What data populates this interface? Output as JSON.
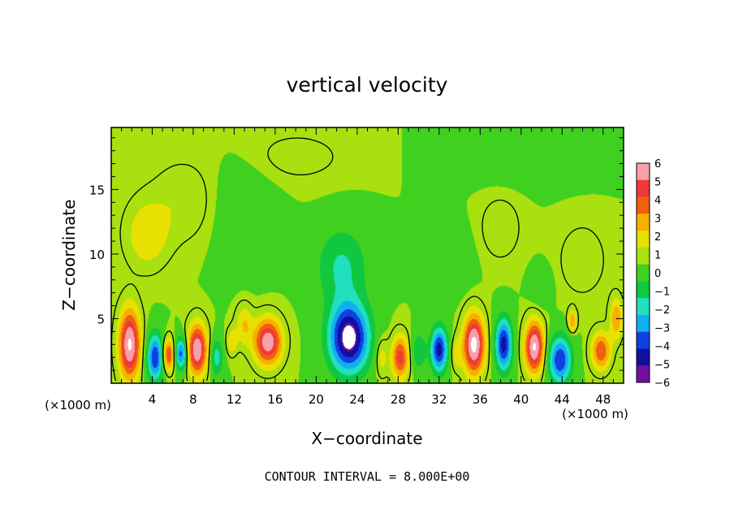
{
  "chart_data": {
    "type": "heatmap",
    "title": "vertical velocity",
    "xlabel": "X−coordinate",
    "ylabel": "Z−coordinate",
    "x_unit_left": "(×1000 m)",
    "x_unit_right": "(×1000 m)",
    "xlim": [
      0,
      50
    ],
    "ylim": [
      0,
      19.8
    ],
    "x_ticks": [
      4,
      8,
      12,
      16,
      20,
      24,
      28,
      32,
      36,
      40,
      44,
      48
    ],
    "y_ticks": [
      5,
      10,
      15
    ],
    "colorbar": {
      "range": [
        -6,
        6
      ],
      "tick_labels": [
        "6",
        "5",
        "4",
        "3",
        "2",
        "1",
        "0",
        "−1",
        "−2",
        "−3",
        "−4",
        "−5",
        "−6"
      ],
      "colors": [
        "#f8a0a8",
        "#f03838",
        "#f06010",
        "#f8b000",
        "#e8e000",
        "#a8e010",
        "#40d020",
        "#10c840",
        "#20e0c0",
        "#10b0f0",
        "#1040e0",
        "#1010a0",
        "#7010a0"
      ]
    },
    "features": [
      {
        "x": 1.8,
        "z": 3.0,
        "amp": 6.5,
        "sx": 1.0,
        "sz": 2.6
      },
      {
        "x": 4.3,
        "z": 2.0,
        "amp": -5.0,
        "sx": 0.8,
        "sz": 1.8
      },
      {
        "x": 5.6,
        "z": 2.2,
        "amp": 4.5,
        "sx": 0.6,
        "sz": 1.2
      },
      {
        "x": 6.8,
        "z": 2.3,
        "amp": -4.5,
        "sx": 0.6,
        "sz": 1.2
      },
      {
        "x": 8.4,
        "z": 2.6,
        "amp": 6.2,
        "sx": 0.9,
        "sz": 1.9
      },
      {
        "x": 10.3,
        "z": 2.0,
        "amp": -2.5,
        "sx": 0.6,
        "sz": 1.4
      },
      {
        "x": 11.8,
        "z": 3.2,
        "amp": 1.8,
        "sx": 0.5,
        "sz": 1.0
      },
      {
        "x": 13.0,
        "z": 4.5,
        "amp": 2.0,
        "sx": 0.8,
        "sz": 1.5
      },
      {
        "x": 15.3,
        "z": 3.2,
        "amp": 6.0,
        "sx": 1.3,
        "sz": 1.7
      },
      {
        "x": 23.2,
        "z": 3.5,
        "amp": -7.0,
        "sx": 1.9,
        "sz": 2.6
      },
      {
        "x": 22.5,
        "z": 9.0,
        "amp": -2.2,
        "sx": 2.4,
        "sz": 3.0
      },
      {
        "x": 26.4,
        "z": 2.0,
        "amp": 1.5,
        "sx": 0.6,
        "sz": 1.5
      },
      {
        "x": 28.2,
        "z": 2.0,
        "amp": 4.5,
        "sx": 0.8,
        "sz": 1.6
      },
      {
        "x": 30.0,
        "z": 2.5,
        "amp": -2.0,
        "sx": 0.7,
        "sz": 1.4
      },
      {
        "x": 32.0,
        "z": 2.6,
        "amp": -5.5,
        "sx": 0.8,
        "sz": 1.7
      },
      {
        "x": 33.7,
        "z": 2.3,
        "amp": 1.5,
        "sx": 0.5,
        "sz": 1.2
      },
      {
        "x": 35.4,
        "z": 3.0,
        "amp": 6.8,
        "sx": 1.0,
        "sz": 2.2
      },
      {
        "x": 38.3,
        "z": 3.0,
        "amp": -5.5,
        "sx": 0.8,
        "sz": 2.0
      },
      {
        "x": 41.3,
        "z": 2.8,
        "amp": 6.5,
        "sx": 0.9,
        "sz": 1.9
      },
      {
        "x": 43.8,
        "z": 1.8,
        "amp": -5.0,
        "sx": 1.1,
        "sz": 1.8
      },
      {
        "x": 45.0,
        "z": 4.8,
        "amp": 3.0,
        "sx": 0.4,
        "sz": 0.8
      },
      {
        "x": 47.8,
        "z": 2.5,
        "amp": 4.0,
        "sx": 0.9,
        "sz": 1.4
      },
      {
        "x": 49.3,
        "z": 5.0,
        "amp": 3.0,
        "sx": 0.6,
        "sz": 1.5
      },
      {
        "x": 3.5,
        "z": 11.5,
        "amp": 1.8,
        "sx": 2.0,
        "sz": 2.5
      },
      {
        "x": 7.0,
        "z": 14.0,
        "amp": 0.9,
        "sx": 3.0,
        "sz": 3.0
      },
      {
        "x": 13.0,
        "z": 13.0,
        "amp": -0.7,
        "sx": 3.0,
        "sz": 4.0
      },
      {
        "x": 18.0,
        "z": 17.5,
        "amp": 0.6,
        "sx": 5.0,
        "sz": 2.0
      },
      {
        "x": 41.0,
        "z": 17.5,
        "amp": -0.7,
        "sx": 6.0,
        "sz": 2.0
      },
      {
        "x": 38.0,
        "z": 12.0,
        "amp": 0.8,
        "sx": 2.0,
        "sz": 2.5
      },
      {
        "x": 33.0,
        "z": 9.5,
        "amp": -0.9,
        "sx": 2.0,
        "sz": 2.5
      },
      {
        "x": 46.0,
        "z": 9.5,
        "amp": 0.7,
        "sx": 2.5,
        "sz": 3.0
      },
      {
        "x": 42.0,
        "z": 7.5,
        "amp": -1.0,
        "sx": 1.0,
        "sz": 1.5
      }
    ]
  },
  "footer": {
    "contour_interval": "CONTOUR INTERVAL = 8.000E+00"
  }
}
